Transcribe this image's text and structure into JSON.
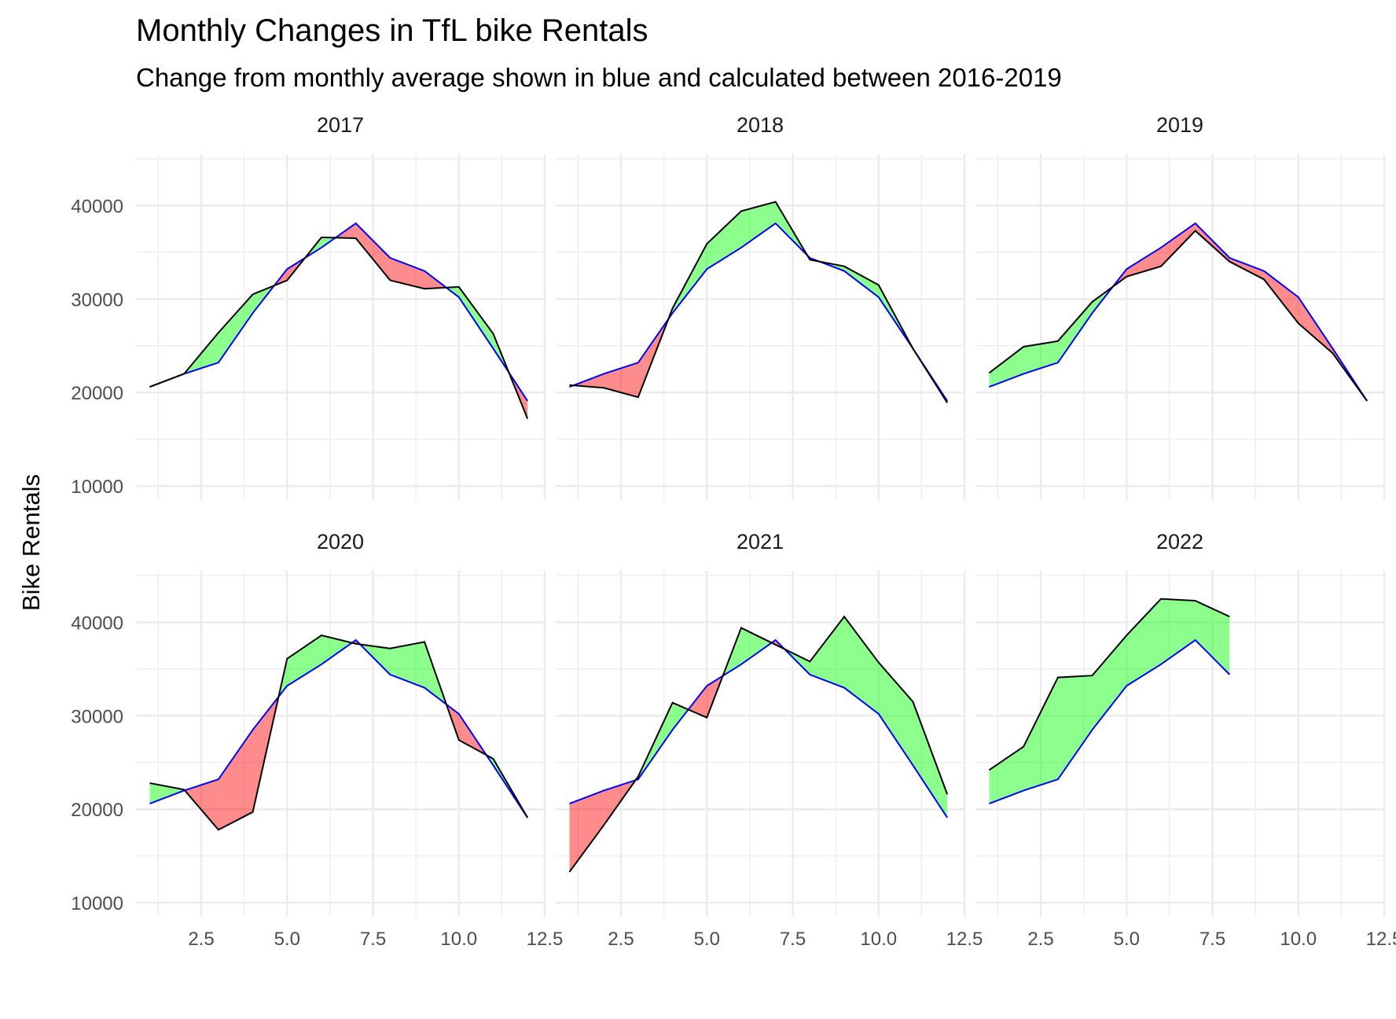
{
  "chart_data": {
    "type": "area",
    "title": "Monthly Changes in TfL bike Rentals",
    "subtitle": "Change from monthly average shown in blue and calculated between 2016-2019",
    "xlabel": "",
    "ylabel": "Bike Rentals",
    "xlim": [
      0.6,
      12.5
    ],
    "ylim": [
      8500,
      45500
    ],
    "x_ticks": [
      2.5,
      5.0,
      7.5,
      10.0,
      12.5
    ],
    "x_tick_labels": [
      "2.5",
      "5.0",
      "7.5",
      "10.0",
      "12.5"
    ],
    "y_ticks": [
      10000,
      20000,
      30000,
      40000
    ],
    "y_tick_labels": [
      "10000",
      "20000",
      "30000",
      "40000"
    ],
    "grid": true,
    "colors": {
      "above_average": "#00ff00",
      "below_average": "#ff0000",
      "average_line": "#0000ff",
      "actual_line": "#000000",
      "grid": "#ebebeb"
    },
    "expected": [
      20600,
      22000,
      23200,
      28500,
      33200,
      35500,
      38100,
      34400,
      33000,
      30200,
      24700,
      19100
    ],
    "panels": [
      {
        "label": "2017",
        "months": [
          1,
          2,
          3,
          4,
          5,
          6,
          7,
          8,
          9,
          10,
          11,
          12
        ],
        "actual": [
          20600,
          22000,
          26400,
          30500,
          32000,
          36600,
          36500,
          32000,
          31100,
          31300,
          26300,
          17200
        ]
      },
      {
        "label": "2018",
        "months": [
          1,
          2,
          3,
          4,
          5,
          6,
          7,
          8,
          9,
          10,
          11,
          12
        ],
        "actual": [
          20800,
          20500,
          19500,
          29000,
          35900,
          39400,
          40400,
          34200,
          33500,
          31500,
          24700,
          18900
        ]
      },
      {
        "label": "2019",
        "months": [
          1,
          2,
          3,
          4,
          5,
          6,
          7,
          8,
          9,
          10,
          11,
          12
        ],
        "actual": [
          22100,
          24900,
          25500,
          29700,
          32400,
          33500,
          37300,
          34000,
          32100,
          27400,
          24200,
          19100
        ]
      },
      {
        "label": "2020",
        "months": [
          1,
          2,
          3,
          4,
          5,
          6,
          7,
          8,
          9,
          10,
          11,
          12
        ],
        "actual": [
          22800,
          22100,
          17800,
          19700,
          36100,
          38600,
          37700,
          37200,
          37900,
          27400,
          25400,
          19100
        ]
      },
      {
        "label": "2021",
        "months": [
          1,
          2,
          3,
          4,
          5,
          6,
          7,
          8,
          9,
          10,
          11,
          12
        ],
        "actual": [
          13300,
          18300,
          23500,
          31400,
          29800,
          39400,
          37600,
          35800,
          40600,
          35700,
          31500,
          21600
        ]
      },
      {
        "label": "2022",
        "months": [
          1,
          2,
          3,
          4,
          5,
          6,
          7,
          8
        ],
        "actual": [
          24200,
          26700,
          34100,
          34300,
          38600,
          42500,
          42300,
          40600
        ]
      }
    ]
  }
}
